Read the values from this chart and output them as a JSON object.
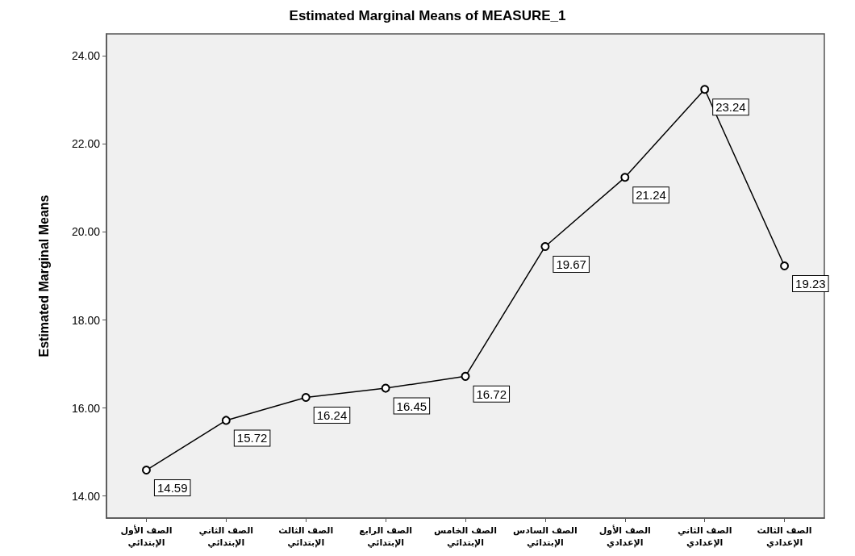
{
  "chart_data": {
    "type": "line",
    "title": "Estimated Marginal Means of MEASURE_1",
    "ylabel": "Estimated Marginal Means",
    "categories": [
      "الصف الأول\nالإبتدائي",
      "الصف الثاني\nالإبتدائي",
      "الصف الثالث\nالإبتدائي",
      "الصف الرابع\nالإبتدائي",
      "الصف الخامس\nالإبتدائي",
      "الصف السادس\nالإبتدائي",
      "الصف الأول\nالإعدادي",
      "الصف الثاني\nالإعدادي",
      "الصف الثالث\nالإعدادي"
    ],
    "values": [
      14.59,
      15.72,
      16.24,
      16.45,
      16.72,
      19.67,
      21.24,
      23.24,
      19.23
    ],
    "color": "#000000",
    "ylim": [
      13.5,
      24.5
    ],
    "yticks": [
      {
        "value": 14,
        "label": "14.00"
      },
      {
        "value": 16,
        "label": "16.00"
      },
      {
        "value": 18,
        "label": "18.00"
      },
      {
        "value": 20,
        "label": "20.00"
      },
      {
        "value": 22,
        "label": "22.00"
      },
      {
        "value": 24,
        "label": "24.00"
      }
    ],
    "data_labels": true,
    "marker": "circle",
    "line_style": "solid",
    "grid": false
  }
}
